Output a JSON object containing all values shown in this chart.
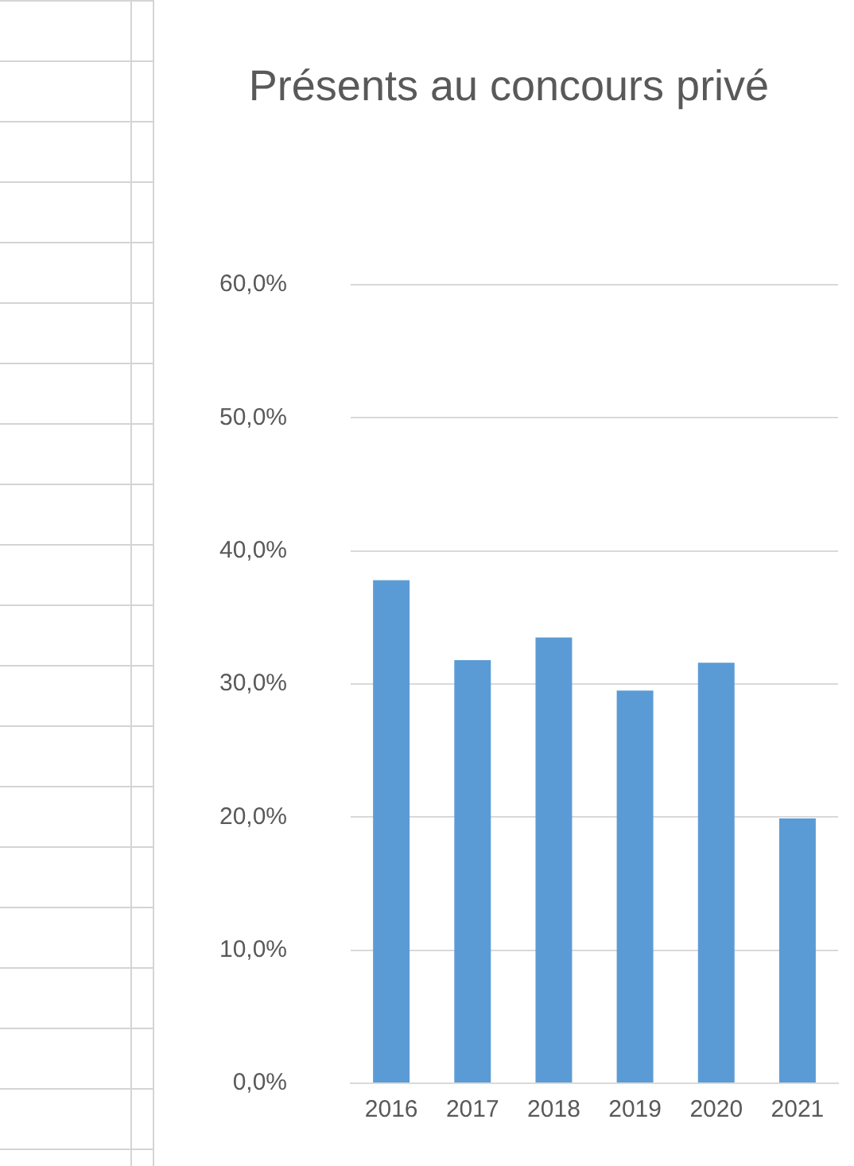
{
  "chart_data": {
    "type": "bar",
    "title": "Présents au concours privé",
    "categories": [
      "2016",
      "2017",
      "2018",
      "2019",
      "2020",
      "2021"
    ],
    "values": [
      37.8,
      31.8,
      33.5,
      29.5,
      31.6,
      19.9
    ],
    "color": "#5b9bd5",
    "ylim": [
      0,
      60
    ],
    "yticks": [
      {
        "value": 0,
        "label": "0,0%"
      },
      {
        "value": 10,
        "label": "10,0%"
      },
      {
        "value": 20,
        "label": "20,0%"
      },
      {
        "value": 30,
        "label": "30,0%"
      },
      {
        "value": 40,
        "label": "40,0%"
      },
      {
        "value": 50,
        "label": "50,0%"
      },
      {
        "value": 60,
        "label": "60,0%"
      }
    ],
    "grid": "y",
    "legend": false
  }
}
